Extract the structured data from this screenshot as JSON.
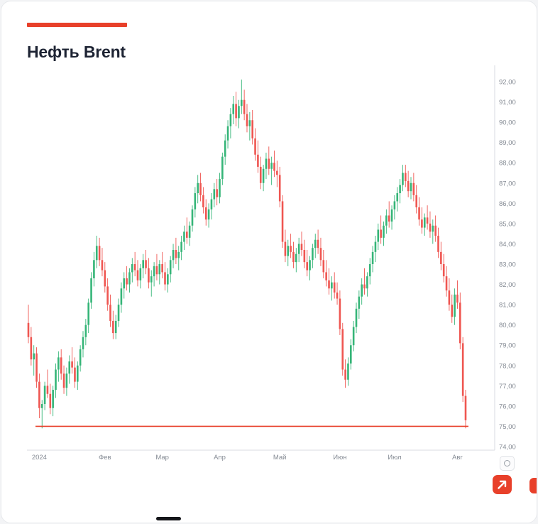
{
  "header": {
    "title": "Нефть Brent"
  },
  "branding": {
    "accent_color": "#e8402a"
  },
  "chart_data": {
    "type": "candlestick",
    "title": "Нефть Brent",
    "y_axis": {
      "min": 74,
      "max": 92,
      "step": 1,
      "labels": [
        "92,00",
        "91,00",
        "90,00",
        "89,00",
        "88,00",
        "87,00",
        "86,00",
        "85,00",
        "84,00",
        "83,00",
        "82,00",
        "81,00",
        "80,00",
        "79,00",
        "78,00",
        "77,00",
        "76,00",
        "75,00",
        "74,00"
      ]
    },
    "x_axis": {
      "labels": [
        "2024",
        "Фев",
        "Мар",
        "Апр",
        "Май",
        "Июн",
        "Июл",
        "Авг"
      ],
      "tick_indices": [
        4,
        28,
        49,
        70,
        92,
        114,
        134,
        157
      ]
    },
    "support_line": {
      "value": 75.0,
      "color": "#e8402a"
    },
    "colors": {
      "up": "#35b578",
      "down": "#ef5651",
      "axis": "#d8dbe0",
      "label": "#858b94"
    },
    "candles": [
      [
        80.1,
        81.0,
        79.1,
        79.4
      ],
      [
        79.4,
        79.9,
        78.0,
        78.3
      ],
      [
        78.3,
        79.0,
        77.5,
        78.6
      ],
      [
        78.6,
        78.9,
        76.9,
        77.2
      ],
      [
        77.2,
        77.6,
        75.4,
        75.9
      ],
      [
        75.9,
        76.3,
        74.9,
        76.1
      ],
      [
        76.1,
        77.2,
        75.8,
        77.0
      ],
      [
        77.0,
        77.8,
        76.4,
        76.6
      ],
      [
        76.6,
        77.1,
        75.6,
        75.9
      ],
      [
        75.9,
        77.0,
        75.5,
        76.8
      ],
      [
        76.8,
        78.1,
        76.4,
        77.8
      ],
      [
        77.8,
        78.7,
        77.2,
        78.4
      ],
      [
        78.4,
        78.8,
        77.3,
        77.6
      ],
      [
        77.6,
        78.0,
        76.6,
        76.9
      ],
      [
        76.9,
        77.9,
        76.5,
        77.6
      ],
      [
        77.6,
        78.5,
        77.1,
        78.2
      ],
      [
        78.2,
        78.9,
        77.6,
        77.9
      ],
      [
        77.9,
        78.4,
        76.9,
        77.2
      ],
      [
        77.2,
        78.2,
        76.8,
        78.0
      ],
      [
        78.0,
        79.0,
        77.7,
        78.8
      ],
      [
        78.8,
        79.7,
        78.4,
        79.4
      ],
      [
        79.4,
        80.3,
        79.0,
        80.0
      ],
      [
        80.0,
        81.3,
        79.6,
        81.1
      ],
      [
        81.1,
        82.6,
        80.8,
        82.3
      ],
      [
        82.3,
        83.6,
        81.9,
        83.2
      ],
      [
        83.2,
        84.4,
        82.8,
        83.9
      ],
      [
        83.9,
        84.3,
        82.9,
        83.2
      ],
      [
        83.2,
        83.8,
        82.4,
        82.7
      ],
      [
        82.7,
        83.1,
        81.6,
        81.9
      ],
      [
        81.9,
        82.3,
        80.7,
        81.0
      ],
      [
        81.0,
        81.5,
        79.9,
        80.2
      ],
      [
        80.2,
        80.7,
        79.3,
        79.6
      ],
      [
        79.6,
        80.5,
        79.3,
        80.2
      ],
      [
        80.2,
        81.3,
        79.9,
        81.0
      ],
      [
        81.0,
        82.1,
        80.6,
        81.8
      ],
      [
        81.8,
        82.6,
        81.3,
        82.3
      ],
      [
        82.3,
        82.9,
        81.7,
        82.0
      ],
      [
        82.0,
        82.8,
        81.6,
        82.6
      ],
      [
        82.6,
        83.3,
        82.1,
        83.0
      ],
      [
        83.0,
        83.6,
        82.4,
        82.7
      ],
      [
        82.7,
        83.2,
        81.9,
        82.2
      ],
      [
        82.2,
        83.0,
        81.8,
        82.8
      ],
      [
        82.8,
        83.5,
        82.3,
        83.2
      ],
      [
        83.2,
        83.7,
        82.5,
        82.8
      ],
      [
        82.8,
        83.3,
        81.8,
        82.1
      ],
      [
        82.1,
        82.7,
        81.4,
        82.4
      ],
      [
        82.4,
        83.1,
        81.9,
        82.9
      ],
      [
        82.9,
        83.5,
        82.2,
        82.5
      ],
      [
        82.5,
        83.2,
        82.0,
        83.0
      ],
      [
        83.0,
        83.6,
        82.3,
        82.6
      ],
      [
        82.6,
        83.1,
        81.7,
        82.0
      ],
      [
        82.0,
        82.8,
        81.6,
        82.5
      ],
      [
        82.5,
        83.4,
        82.1,
        83.2
      ],
      [
        83.2,
        84.0,
        82.8,
        83.7
      ],
      [
        83.7,
        84.3,
        83.0,
        83.3
      ],
      [
        83.3,
        83.9,
        82.7,
        83.6
      ],
      [
        83.6,
        84.4,
        83.2,
        84.1
      ],
      [
        84.1,
        84.9,
        83.7,
        84.6
      ],
      [
        84.6,
        85.3,
        84.0,
        84.3
      ],
      [
        84.3,
        85.1,
        83.9,
        84.9
      ],
      [
        84.9,
        85.9,
        84.6,
        85.7
      ],
      [
        85.7,
        86.8,
        85.3,
        86.5
      ],
      [
        86.5,
        87.4,
        86.0,
        87.0
      ],
      [
        87.0,
        87.5,
        86.1,
        86.4
      ],
      [
        86.4,
        86.8,
        85.5,
        85.8
      ],
      [
        85.8,
        86.2,
        84.9,
        85.2
      ],
      [
        85.2,
        86.0,
        84.8,
        85.7
      ],
      [
        85.7,
        86.5,
        85.2,
        86.2
      ],
      [
        86.2,
        87.0,
        85.8,
        86.7
      ],
      [
        86.7,
        87.2,
        85.9,
        86.3
      ],
      [
        86.3,
        87.5,
        86.0,
        87.2
      ],
      [
        87.2,
        88.5,
        86.9,
        88.3
      ],
      [
        88.3,
        89.4,
        87.9,
        89.1
      ],
      [
        89.1,
        90.1,
        88.7,
        89.8
      ],
      [
        89.8,
        90.7,
        89.2,
        90.4
      ],
      [
        90.4,
        91.3,
        89.9,
        90.9
      ],
      [
        90.9,
        91.5,
        89.8,
        90.2
      ],
      [
        90.2,
        91.1,
        89.7,
        90.8
      ],
      [
        90.8,
        92.1,
        90.4,
        91.1
      ],
      [
        91.1,
        91.6,
        90.1,
        90.4
      ],
      [
        90.4,
        90.9,
        89.5,
        89.8
      ],
      [
        89.8,
        90.5,
        89.1,
        90.1
      ],
      [
        90.1,
        90.6,
        88.9,
        89.2
      ],
      [
        89.2,
        89.7,
        88.1,
        88.4
      ],
      [
        88.4,
        89.1,
        87.5,
        87.8
      ],
      [
        87.8,
        88.3,
        86.7,
        87.0
      ],
      [
        87.0,
        87.9,
        86.6,
        87.7
      ],
      [
        87.7,
        88.5,
        87.2,
        88.2
      ],
      [
        88.2,
        88.8,
        87.4,
        87.7
      ],
      [
        87.7,
        88.3,
        86.9,
        88.0
      ],
      [
        88.0,
        88.6,
        87.3,
        87.6
      ],
      [
        87.6,
        88.1,
        86.8,
        87.4
      ],
      [
        87.4,
        87.8,
        85.8,
        86.1
      ],
      [
        86.1,
        86.4,
        83.8,
        84.1
      ],
      [
        84.1,
        84.7,
        83.1,
        83.4
      ],
      [
        83.4,
        84.2,
        82.9,
        83.9
      ],
      [
        83.9,
        84.5,
        83.3,
        83.6
      ],
      [
        83.6,
        84.1,
        82.8,
        83.1
      ],
      [
        83.1,
        83.8,
        82.6,
        83.5
      ],
      [
        83.5,
        84.3,
        83.1,
        84.0
      ],
      [
        84.0,
        84.6,
        83.4,
        83.7
      ],
      [
        83.7,
        84.2,
        82.8,
        83.1
      ],
      [
        83.1,
        83.7,
        82.4,
        82.7
      ],
      [
        82.7,
        83.4,
        82.2,
        83.2
      ],
      [
        83.2,
        84.0,
        82.8,
        83.8
      ],
      [
        83.8,
        84.5,
        83.3,
        84.2
      ],
      [
        84.2,
        84.7,
        83.5,
        83.8
      ],
      [
        83.8,
        84.3,
        82.9,
        83.2
      ],
      [
        83.2,
        83.7,
        82.3,
        82.6
      ],
      [
        82.6,
        83.2,
        81.9,
        82.2
      ],
      [
        82.2,
        82.8,
        81.5,
        81.8
      ],
      [
        81.8,
        82.4,
        81.2,
        82.1
      ],
      [
        82.1,
        82.6,
        81.3,
        81.6
      ],
      [
        81.6,
        82.1,
        81.0,
        81.3
      ],
      [
        81.3,
        81.7,
        79.5,
        79.8
      ],
      [
        79.8,
        80.1,
        77.5,
        77.8
      ],
      [
        77.8,
        78.3,
        76.9,
        77.3
      ],
      [
        77.3,
        78.4,
        77.0,
        78.1
      ],
      [
        78.1,
        79.3,
        77.8,
        79.0
      ],
      [
        79.0,
        80.2,
        78.7,
        79.9
      ],
      [
        79.9,
        81.1,
        79.6,
        80.8
      ],
      [
        80.8,
        81.7,
        80.3,
        81.4
      ],
      [
        81.4,
        82.3,
        81.0,
        82.0
      ],
      [
        82.0,
        82.8,
        81.5,
        81.8
      ],
      [
        81.8,
        82.6,
        81.4,
        82.4
      ],
      [
        82.4,
        83.3,
        82.0,
        83.0
      ],
      [
        83.0,
        83.9,
        82.6,
        83.6
      ],
      [
        83.6,
        84.4,
        83.1,
        84.1
      ],
      [
        84.1,
        85.0,
        83.7,
        84.7
      ],
      [
        84.7,
        85.4,
        84.0,
        84.3
      ],
      [
        84.3,
        85.1,
        83.9,
        84.9
      ],
      [
        84.9,
        85.7,
        84.5,
        85.4
      ],
      [
        85.4,
        86.1,
        84.8,
        85.1
      ],
      [
        85.1,
        85.9,
        84.7,
        85.7
      ],
      [
        85.7,
        86.4,
        85.2,
        86.1
      ],
      [
        86.1,
        86.8,
        85.6,
        86.5
      ],
      [
        86.5,
        87.2,
        86.0,
        86.9
      ],
      [
        86.9,
        87.9,
        86.6,
        87.5
      ],
      [
        87.5,
        87.9,
        86.8,
        87.1
      ],
      [
        87.1,
        87.6,
        86.3,
        86.6
      ],
      [
        86.6,
        87.3,
        86.2,
        87.0
      ],
      [
        87.0,
        87.5,
        86.1,
        86.4
      ],
      [
        86.4,
        86.9,
        85.5,
        85.8
      ],
      [
        85.8,
        86.3,
        84.9,
        85.2
      ],
      [
        85.2,
        85.8,
        84.5,
        84.8
      ],
      [
        84.8,
        85.5,
        84.4,
        85.3
      ],
      [
        85.3,
        85.9,
        84.7,
        85.0
      ],
      [
        85.0,
        85.6,
        84.3,
        84.6
      ],
      [
        84.6,
        85.2,
        84.0,
        84.9
      ],
      [
        84.9,
        85.4,
        84.1,
        84.4
      ],
      [
        84.4,
        84.8,
        83.3,
        83.6
      ],
      [
        83.6,
        84.1,
        82.7,
        83.0
      ],
      [
        83.0,
        83.5,
        82.1,
        82.4
      ],
      [
        82.4,
        82.9,
        81.4,
        81.7
      ],
      [
        81.7,
        82.3,
        80.7,
        81.0
      ],
      [
        81.0,
        81.5,
        80.1,
        80.4
      ],
      [
        80.4,
        81.8,
        80.0,
        81.5
      ],
      [
        81.5,
        82.2,
        80.8,
        81.1
      ],
      [
        81.1,
        81.6,
        78.8,
        79.1
      ],
      [
        79.1,
        79.4,
        76.2,
        76.5
      ],
      [
        76.5,
        76.8,
        74.9,
        75.3
      ]
    ]
  }
}
